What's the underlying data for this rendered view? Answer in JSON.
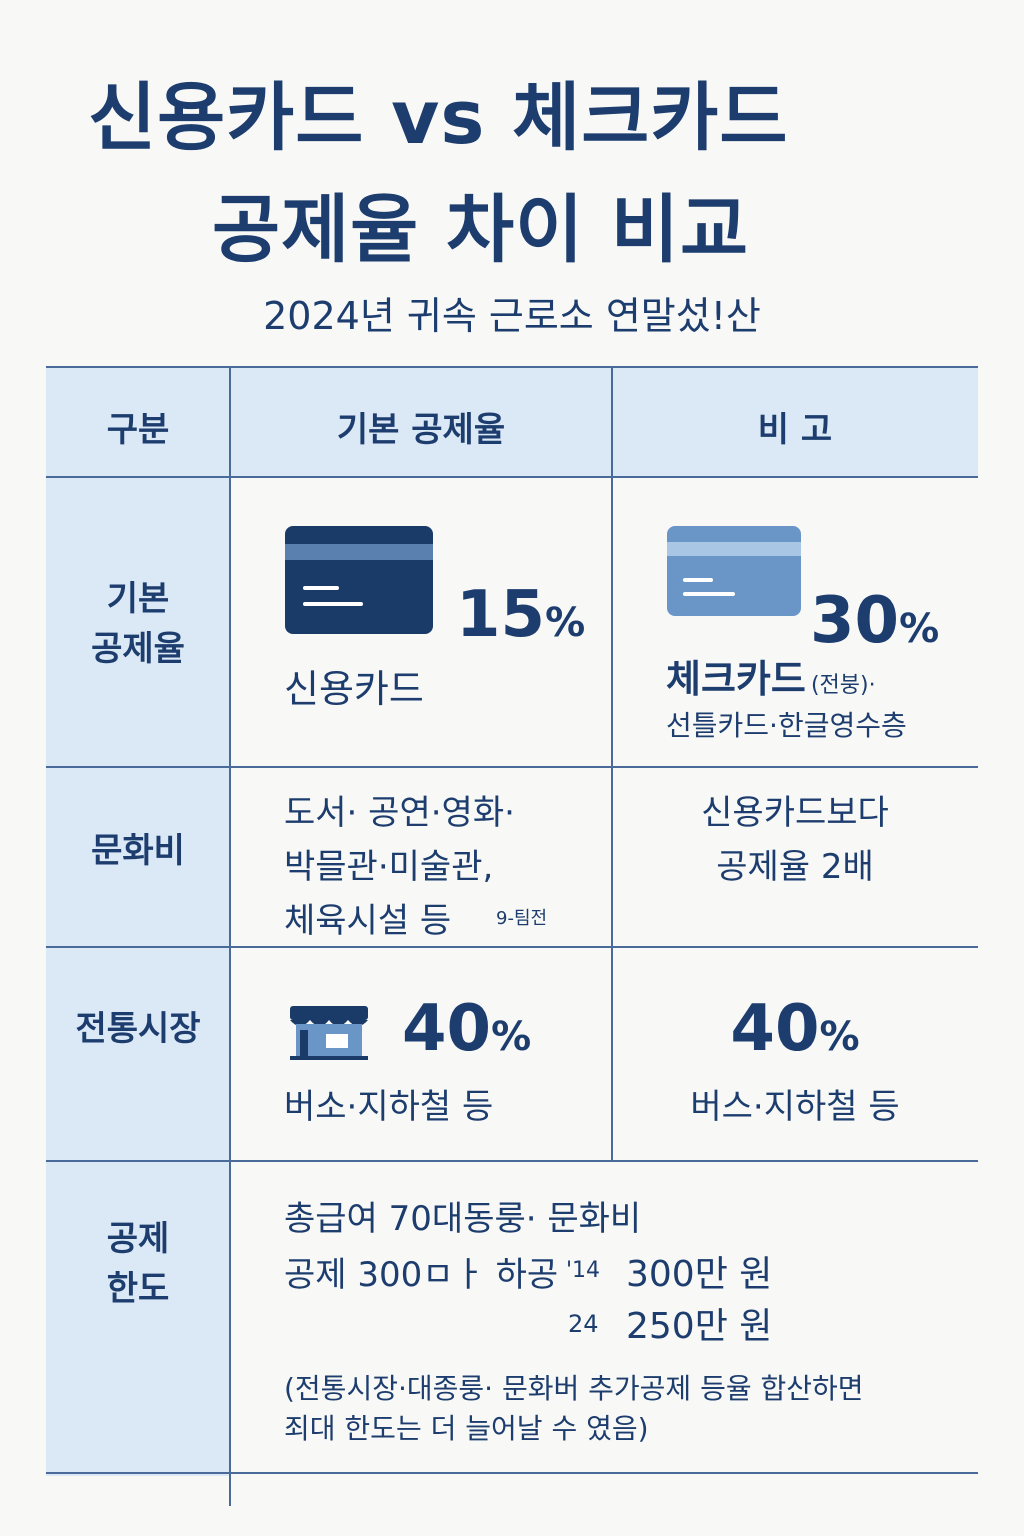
{
  "title": {
    "line1": "신용카드 vs 체크카드",
    "line2": "공제율 차이 비교"
  },
  "subtitle": "2024년 귀속 근로소 연말섰!산",
  "table": {
    "headers": [
      "구분",
      "기본 공제율",
      "비 고"
    ],
    "rows": {
      "basic": {
        "label": "기본\n공제율",
        "credit_rate": "15",
        "credit_pct": "%",
        "credit_name": "신용카드",
        "check_rate": "30",
        "check_pct": "%",
        "check_name": "체크카드",
        "check_note": "(전붕)·",
        "check_sub": "선틀카드·한글영수층"
      },
      "culture": {
        "label": "문화비",
        "items_line1": "도서· 공연·영화·",
        "items_line2": "박믈관·미술관,",
        "items_line3": "체육시설 등",
        "items_tag": "9-팀전",
        "note_line1": "신용카드보다",
        "note_line2": "공제율 2배"
      },
      "market": {
        "label": "전통시장",
        "rate_left": "40",
        "pct_left": "%",
        "sub_left": "버소·지하철 등",
        "rate_right": "40",
        "pct_right": "%",
        "sub_right": "버스·지하철 등"
      },
      "limit": {
        "label": "공제\n한도",
        "line1": "총급여 70대동룽· 문화비",
        "line2_a": "공제 300ㅁㅏ 하공",
        "line2_b": "'14",
        "line2_c": "300만 원",
        "line3_b": "24",
        "line3_c": "250만 원",
        "note_line1": "(전통시장·대종룽· 문화버 추가공제 등율 합산하면",
        "note_line2": "죄대 한도는 더 늘어날 수 였음)"
      }
    }
  },
  "colors": {
    "navy": "#1c3d6e",
    "header_bg": "#dbe8f5",
    "card_dark": "#1a3a68",
    "card_light": "#6a95c7"
  }
}
